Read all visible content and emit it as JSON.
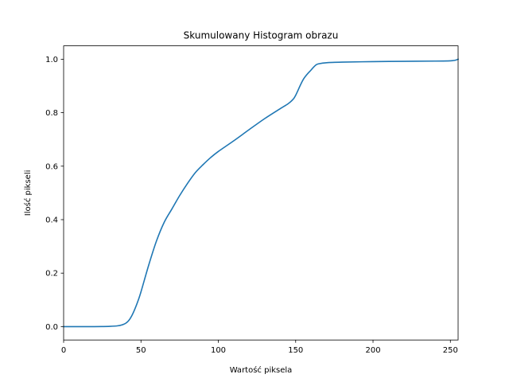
{
  "chart_data": {
    "type": "line",
    "title": "Skumulowany Histogram obrazu",
    "xlabel": "Wartość piksela",
    "ylabel": "Ilość pikseli",
    "xlim": [
      0,
      255
    ],
    "ylim": [
      -0.05,
      1.05
    ],
    "xticks": [
      0,
      50,
      100,
      150,
      200,
      250
    ],
    "xtick_labels": [
      "0",
      "50",
      "100",
      "150",
      "200",
      "250"
    ],
    "yticks": [
      0.0,
      0.2,
      0.4,
      0.6,
      0.8,
      1.0
    ],
    "ytick_labels": [
      "0.0",
      "0.2",
      "0.4",
      "0.6",
      "0.8",
      "1.0"
    ],
    "grid": false,
    "line_color": "#1f77b4",
    "series": [
      {
        "x": [
          0,
          10,
          20,
          30,
          35,
          38,
          40,
          42,
          44,
          46,
          48,
          50,
          55,
          60,
          65,
          70,
          75,
          80,
          85,
          90,
          95,
          100,
          110,
          120,
          130,
          140,
          145,
          148,
          150,
          155,
          160,
          163,
          165,
          170,
          180,
          200,
          220,
          240,
          250,
          253,
          255
        ],
        "y": [
          0.0,
          0.0,
          0.0,
          0.001,
          0.003,
          0.007,
          0.012,
          0.022,
          0.04,
          0.065,
          0.095,
          0.13,
          0.23,
          0.32,
          0.39,
          0.44,
          0.49,
          0.535,
          0.575,
          0.605,
          0.632,
          0.655,
          0.695,
          0.737,
          0.778,
          0.815,
          0.833,
          0.848,
          0.865,
          0.925,
          0.96,
          0.978,
          0.983,
          0.987,
          0.989,
          0.991,
          0.992,
          0.993,
          0.994,
          0.996,
          1.0
        ]
      }
    ]
  }
}
